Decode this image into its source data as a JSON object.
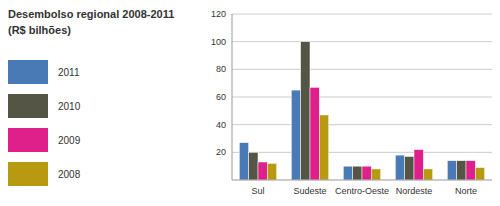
{
  "chart_data": {
    "type": "bar",
    "title": "Desembolso regional 2008-2011",
    "subtitle": "(R$ bilhões)",
    "categories": [
      "Sul",
      "Sudeste",
      "Centro-Oeste",
      "Nordeste",
      "Norte"
    ],
    "series": [
      {
        "name": "2011",
        "color": "#4a7ab5",
        "values": [
          27,
          65,
          10,
          18,
          14
        ]
      },
      {
        "name": "2010",
        "color": "#555545",
        "values": [
          20,
          100,
          10,
          17,
          14
        ]
      },
      {
        "name": "2009",
        "color": "#e0208a",
        "values": [
          13,
          67,
          10,
          22,
          14
        ]
      },
      {
        "name": "2008",
        "color": "#b89a10",
        "values": [
          12,
          47,
          8,
          8,
          9
        ]
      }
    ],
    "ylim": [
      0,
      120
    ],
    "yticks": [
      20,
      40,
      60,
      80,
      100,
      120
    ],
    "grid": true,
    "legend": "left"
  }
}
